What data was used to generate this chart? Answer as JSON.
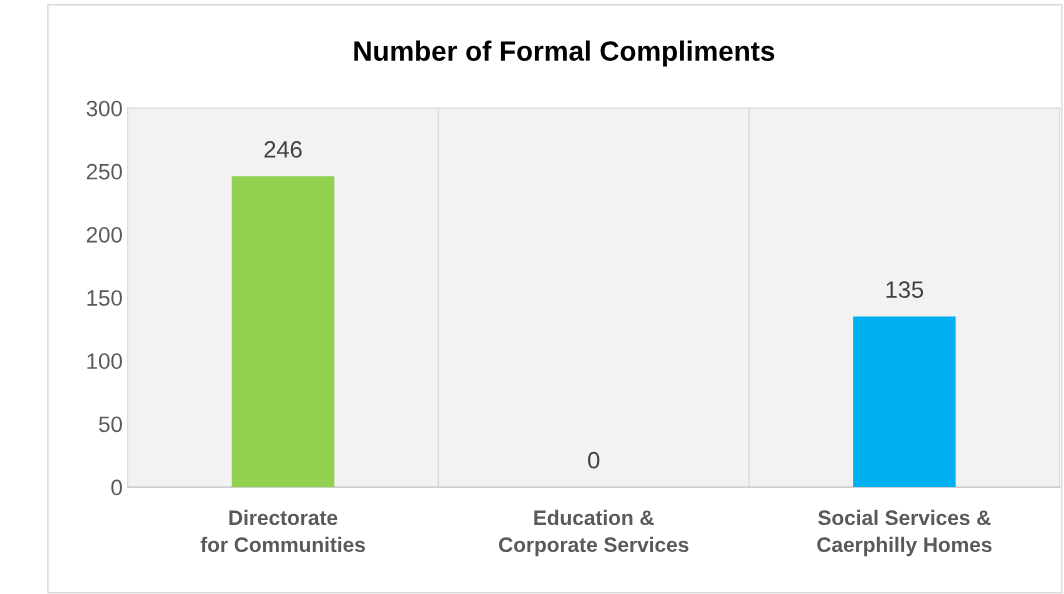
{
  "chart_data": {
    "type": "bar",
    "title": "Number of Formal Compliments",
    "categories": [
      "Directorate for Communities",
      "Education & Corporate Services",
      "Social Services & Caerphilly Homes"
    ],
    "values": [
      246,
      0,
      135
    ],
    "colors": [
      "#92d050",
      "#92d050",
      "#00b0f0"
    ],
    "ylim": [
      0,
      300
    ],
    "yticks": [
      0,
      50,
      100,
      150,
      200,
      250,
      300
    ],
    "grid": "x",
    "data_labels": true
  }
}
